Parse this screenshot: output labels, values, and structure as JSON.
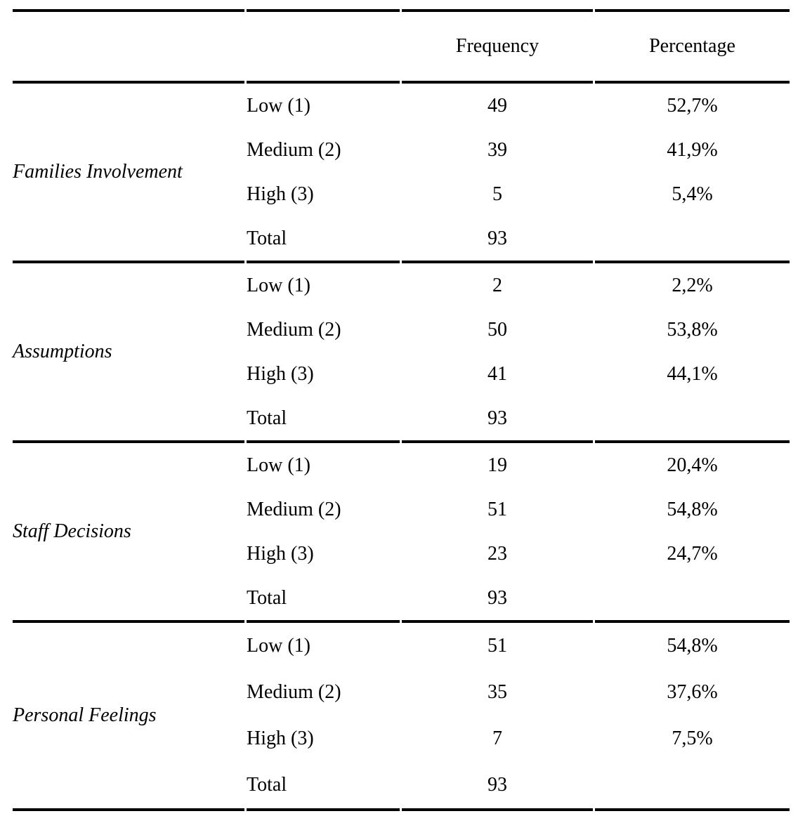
{
  "table": {
    "headers": {
      "frequency": "Frequency",
      "percentage": "Percentage"
    },
    "groups": [
      {
        "label": "Families Involvement",
        "rows": [
          {
            "level": "Low (1)",
            "frequency": "49",
            "percentage": "52,7%"
          },
          {
            "level": "Medium (2)",
            "frequency": "39",
            "percentage": "41,9%"
          },
          {
            "level": "High (3)",
            "frequency": "5",
            "percentage": "5,4%"
          },
          {
            "level": "Total",
            "frequency": "93",
            "percentage": ""
          }
        ]
      },
      {
        "label": "Assumptions",
        "rows": [
          {
            "level": "Low (1)",
            "frequency": "2",
            "percentage": "2,2%"
          },
          {
            "level": "Medium (2)",
            "frequency": "50",
            "percentage": "53,8%"
          },
          {
            "level": "High (3)",
            "frequency": "41",
            "percentage": "44,1%"
          },
          {
            "level": "Total",
            "frequency": "93",
            "percentage": ""
          }
        ]
      },
      {
        "label": "Staff Decisions",
        "rows": [
          {
            "level": "Low (1)",
            "frequency": "19",
            "percentage": "20,4%"
          },
          {
            "level": "Medium (2)",
            "frequency": "51",
            "percentage": "54,8%"
          },
          {
            "level": "High (3)",
            "frequency": "23",
            "percentage": "24,7%"
          },
          {
            "level": "Total",
            "frequency": "93",
            "percentage": ""
          }
        ]
      },
      {
        "label": "Personal Feelings",
        "rows": [
          {
            "level": "Low (1)",
            "frequency": "51",
            "percentage": "54,8%"
          },
          {
            "level": "Medium (2)",
            "frequency": "35",
            "percentage": "37,6%"
          },
          {
            "level": "High (3)",
            "frequency": "7",
            "percentage": "7,5%"
          },
          {
            "level": "Total",
            "frequency": "93",
            "percentage": ""
          }
        ]
      }
    ],
    "colors": {
      "rule": "#000000",
      "text": "#000000",
      "background": "#ffffff"
    }
  }
}
